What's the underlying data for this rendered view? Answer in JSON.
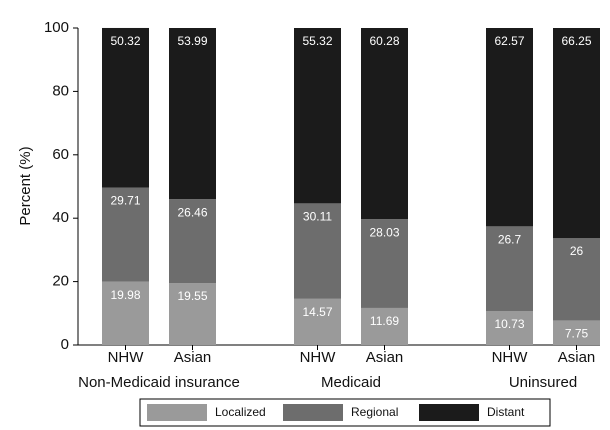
{
  "chart_data": {
    "type": "stacked-bar",
    "y_label": "Percent (%)",
    "categories": [
      "NHW",
      "Asian",
      "NHW",
      "Asian",
      "NHW",
      "Asian"
    ],
    "group_labels": [
      "Non-Medicaid insurance",
      "Medicaid",
      "Uninsured"
    ],
    "series": [
      {
        "name": "Localized",
        "color": "#9a9a9a",
        "values": [
          19.98,
          19.55,
          14.57,
          11.69,
          10.73,
          7.75
        ]
      },
      {
        "name": "Regional",
        "color": "#6d6d6d",
        "values": [
          29.71,
          26.46,
          30.11,
          28.03,
          26.7,
          26
        ]
      },
      {
        "name": "Distant",
        "color": "#1b1b1b",
        "values": [
          50.32,
          53.99,
          55.32,
          60.28,
          62.57,
          66.25
        ]
      }
    ],
    "ylim": [
      0,
      100
    ],
    "yticks": [
      0,
      20,
      40,
      60,
      80,
      100
    ],
    "grid": false
  }
}
